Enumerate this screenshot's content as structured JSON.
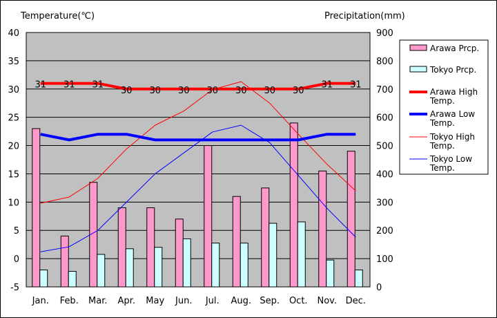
{
  "chart_data": {
    "type": "bar",
    "ylabel": "Temperature(℃)",
    "y2label": "Precipitation(mm)",
    "categories": [
      "Jan.",
      "Feb.",
      "Mar.",
      "Apr.",
      "May",
      "Jun.",
      "Jul.",
      "Aug.",
      "Sep.",
      "Oct.",
      "Nov.",
      "Dec."
    ],
    "ylim": [
      -5,
      40
    ],
    "y_ticks": [
      "-5",
      "0",
      "5",
      "10",
      "15",
      "20",
      "25",
      "30",
      "35",
      "40"
    ],
    "y2lim": [
      0,
      900
    ],
    "y2_ticks": [
      "0",
      "100",
      "200",
      "300",
      "400",
      "500",
      "600",
      "700",
      "800",
      "900"
    ],
    "grid": true,
    "legend_position": "right",
    "plot_background": "#c0c0c0",
    "series": [
      {
        "name": "Arawa Prcp.",
        "kind": "bar",
        "axis": "right",
        "color": "#ff99cc",
        "values": [
          560,
          180,
          370,
          280,
          280,
          240,
          500,
          320,
          350,
          580,
          410,
          480
        ]
      },
      {
        "name": "Tokyo Prcp.",
        "kind": "bar",
        "axis": "right",
        "color": "#ccffff",
        "values": [
          60,
          55,
          115,
          135,
          140,
          170,
          155,
          155,
          225,
          230,
          95,
          60
        ]
      },
      {
        "name": "Arawa High Temp.",
        "kind": "line",
        "axis": "left",
        "color": "#ff0000",
        "width": 4,
        "values": [
          31,
          31,
          31,
          30,
          30,
          30,
          30,
          30,
          30,
          30,
          31,
          31
        ],
        "labels": [
          "31",
          "31",
          "31",
          "30",
          "30",
          "30",
          "30",
          "30",
          "30",
          "30",
          "31",
          "31"
        ]
      },
      {
        "name": "Arawa Low Temp.",
        "kind": "line",
        "axis": "left",
        "color": "#0000ff",
        "width": 4,
        "values": [
          22,
          21,
          22,
          22,
          21,
          21,
          21,
          21,
          21,
          21,
          22,
          22
        ]
      },
      {
        "name": "Tokyo High Temp.",
        "kind": "line",
        "axis": "left",
        "color": "#ff0000",
        "width": 1,
        "values": [
          9.8,
          10.9,
          14.2,
          19.4,
          23.6,
          26.1,
          29.9,
          31.3,
          27.5,
          22.0,
          16.7,
          12.0
        ]
      },
      {
        "name": "Tokyo Low Temp.",
        "kind": "line",
        "axis": "left",
        "color": "#0000ff",
        "width": 1,
        "values": [
          1.2,
          2.1,
          5.0,
          10.0,
          15.0,
          18.7,
          22.4,
          23.6,
          20.5,
          14.7,
          8.9,
          3.8
        ]
      }
    ],
    "legend": [
      {
        "label": "Arawa Prcp.",
        "kind": "box",
        "color": "#ff99cc"
      },
      {
        "label": "Tokyo Prcp.",
        "kind": "box",
        "color": "#ccffff"
      },
      {
        "label": "Arawa High\nTemp.",
        "kind": "line",
        "color": "#ff0000",
        "width": 4
      },
      {
        "label": "Arawa Low\nTemp.",
        "kind": "line",
        "color": "#0000ff",
        "width": 4
      },
      {
        "label": "Tokyo High\nTemp.",
        "kind": "line",
        "color": "#ff0000",
        "width": 1
      },
      {
        "label": "Tokyo Low\nTemp.",
        "kind": "line",
        "color": "#0000ff",
        "width": 1
      }
    ]
  }
}
